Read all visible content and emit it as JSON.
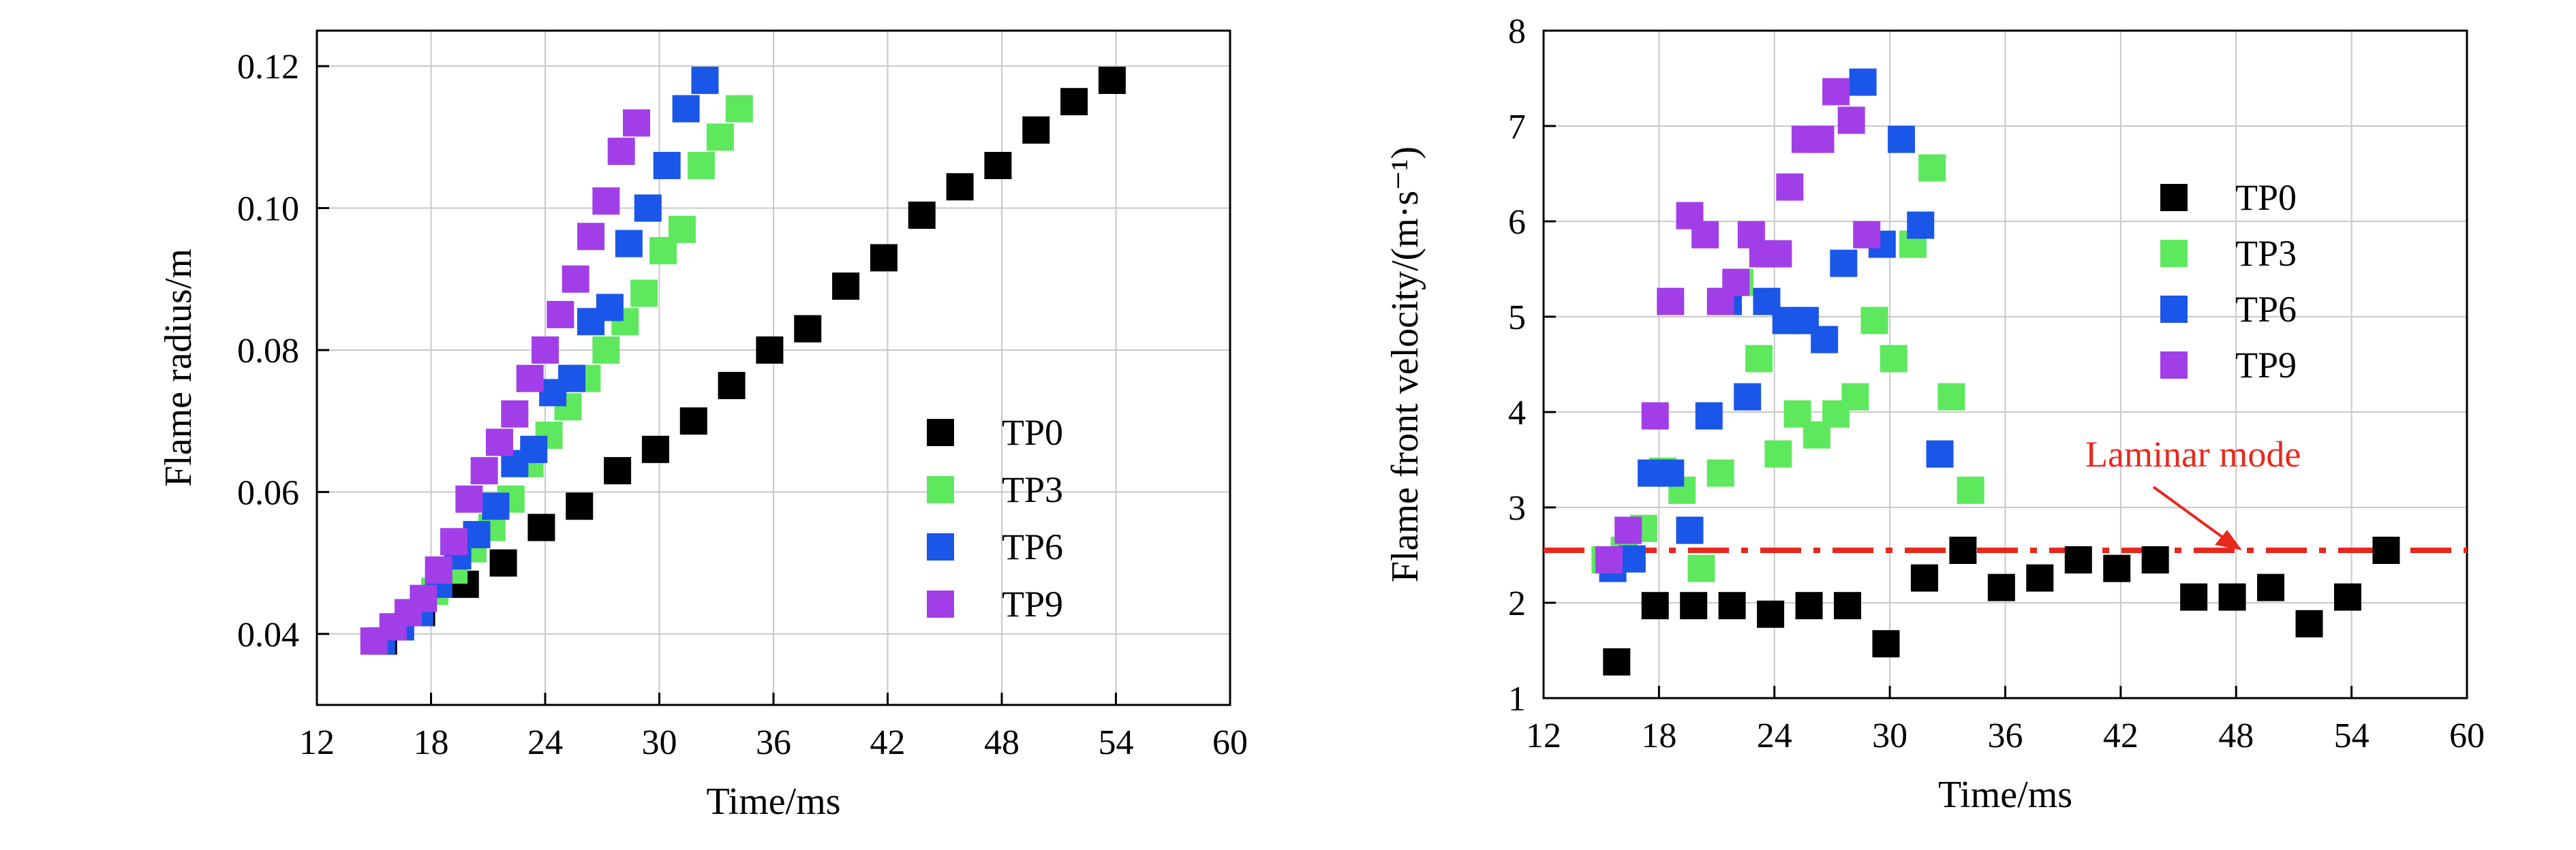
{
  "chart_data": [
    {
      "type": "scatter",
      "xlabel": "Time/ms",
      "ylabel": "Flame radius/m",
      "xlim": [
        12,
        60
      ],
      "ylim": [
        0.03,
        0.125
      ],
      "xticks": [
        "12",
        "18",
        "24",
        "30",
        "36",
        "42",
        "48",
        "54",
        "60"
      ],
      "yticks": [
        "0.04",
        "0.06",
        "0.08",
        "0.10",
        "0.12"
      ],
      "grid": true,
      "legend_position": "center-right",
      "series": [
        {
          "name": "TP0",
          "color": "#000000",
          "x": [
            15.5,
            17.5,
            19.8,
            21.8,
            23.8,
            25.8,
            27.8,
            29.8,
            31.8,
            33.8,
            35.8,
            37.8,
            39.8,
            41.8,
            43.8,
            45.8,
            47.8,
            49.8,
            51.8,
            53.8
          ],
          "y": [
            0.039,
            0.043,
            0.047,
            0.05,
            0.055,
            0.058,
            0.063,
            0.066,
            0.07,
            0.075,
            0.08,
            0.083,
            0.089,
            0.093,
            0.099,
            0.103,
            0.106,
            0.111,
            0.115,
            0.118
          ]
        },
        {
          "name": "TP3",
          "color": "#5ee85e",
          "x": [
            15.2,
            16.3,
            17.2,
            18.2,
            19.2,
            20.2,
            21.2,
            22.2,
            23.2,
            24.2,
            25.2,
            26.2,
            27.2,
            28.2,
            29.2,
            30.2,
            31.2,
            32.2,
            33.2,
            34.2
          ],
          "y": [
            0.039,
            0.041,
            0.043,
            0.046,
            0.049,
            0.052,
            0.055,
            0.059,
            0.064,
            0.068,
            0.072,
            0.076,
            0.08,
            0.084,
            0.088,
            0.094,
            0.097,
            0.106,
            0.11,
            0.114
          ]
        },
        {
          "name": "TP6",
          "color": "#1a56e8",
          "x": [
            15.4,
            16.4,
            17.4,
            18.4,
            19.4,
            20.4,
            21.4,
            22.4,
            23.4,
            24.4,
            25.4,
            26.4,
            27.4,
            28.4,
            29.4,
            30.4,
            31.4,
            32.4
          ],
          "y": [
            0.039,
            0.041,
            0.043,
            0.047,
            0.051,
            0.054,
            0.058,
            0.064,
            0.066,
            0.074,
            0.076,
            0.084,
            0.086,
            0.095,
            0.1,
            0.106,
            0.114,
            0.118
          ]
        },
        {
          "name": "TP9",
          "color": "#a23ee8",
          "x": [
            15.0,
            16.0,
            16.8,
            17.6,
            18.4,
            19.2,
            20.0,
            20.8,
            21.6,
            22.4,
            23.2,
            24.0,
            24.8,
            25.6,
            26.4,
            27.2,
            28.0,
            28.8
          ],
          "y": [
            0.039,
            0.041,
            0.043,
            0.045,
            0.049,
            0.053,
            0.059,
            0.063,
            0.067,
            0.071,
            0.076,
            0.08,
            0.085,
            0.09,
            0.096,
            0.101,
            0.108,
            0.112
          ]
        }
      ]
    },
    {
      "type": "scatter",
      "xlabel": "Time/ms",
      "ylabel": "Flame front velocity/(m·s⁻¹)",
      "xlim": [
        12,
        60
      ],
      "ylim": [
        1,
        8
      ],
      "xticks": [
        "12",
        "18",
        "24",
        "30",
        "36",
        "42",
        "48",
        "54",
        "60"
      ],
      "yticks": [
        "1",
        "2",
        "3",
        "4",
        "5",
        "6",
        "7",
        "8"
      ],
      "grid": true,
      "legend_position": "upper-right",
      "annotation": {
        "text": "Laminar mode",
        "color": "#e8281e",
        "line_y": 2.55
      },
      "series": [
        {
          "name": "TP0",
          "color": "#000000",
          "x": [
            15.8,
            17.8,
            19.8,
            21.8,
            23.8,
            25.8,
            27.8,
            29.8,
            31.8,
            33.8,
            35.8,
            37.8,
            39.8,
            41.8,
            43.8,
            45.8,
            47.8,
            49.8,
            51.8,
            53.8,
            55.8
          ],
          "y": [
            1.38,
            1.97,
            1.97,
            1.97,
            1.88,
            1.97,
            1.97,
            1.57,
            2.26,
            2.55,
            2.16,
            2.26,
            2.45,
            2.36,
            2.45,
            2.06,
            2.06,
            2.16,
            1.78,
            2.06,
            2.55
          ]
        },
        {
          "name": "TP3",
          "color": "#5ee85e",
          "x": [
            15.2,
            16.2,
            17.2,
            18.2,
            19.2,
            20.2,
            21.2,
            22.2,
            23.2,
            24.2,
            25.2,
            26.2,
            27.2,
            28.2,
            29.2,
            30.2,
            31.2,
            32.2,
            33.2,
            34.2
          ],
          "y": [
            2.45,
            2.55,
            2.78,
            3.38,
            3.18,
            2.36,
            3.36,
            5.36,
            4.56,
            3.56,
            3.98,
            3.76,
            3.98,
            4.16,
            4.96,
            4.56,
            5.76,
            6.56,
            4.16,
            3.18
          ]
        },
        {
          "name": "TP6",
          "color": "#1a56e8",
          "x": [
            15.6,
            16.6,
            17.6,
            18.6,
            19.6,
            20.6,
            21.6,
            22.6,
            23.6,
            24.6,
            25.6,
            26.6,
            27.6,
            28.6,
            29.6,
            30.6,
            31.6,
            32.6
          ],
          "y": [
            2.36,
            2.46,
            3.36,
            3.36,
            2.76,
            3.96,
            5.16,
            4.16,
            5.16,
            4.96,
            4.96,
            4.76,
            5.56,
            7.46,
            5.76,
            6.86,
            5.96,
            3.56
          ]
        },
        {
          "name": "TP9",
          "color": "#a23ee8",
          "x": [
            15.4,
            16.4,
            17.8,
            18.6,
            19.6,
            20.4,
            21.2,
            22.0,
            22.8,
            23.4,
            24.2,
            24.8,
            25.6,
            26.4,
            27.2,
            28.0,
            28.8
          ],
          "y": [
            2.45,
            2.76,
            3.96,
            5.16,
            6.06,
            5.86,
            5.16,
            5.36,
            5.86,
            5.66,
            5.66,
            6.36,
            6.86,
            6.86,
            7.36,
            7.06,
            5.86
          ]
        }
      ]
    }
  ]
}
